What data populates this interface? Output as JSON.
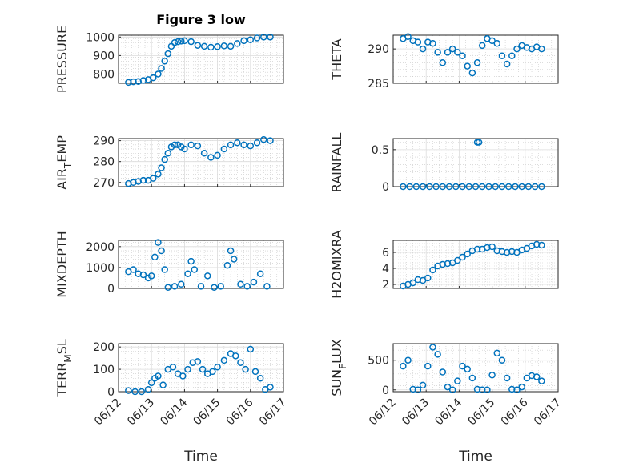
{
  "chart_data": [
    {
      "type": "scatter",
      "title": "Figure 3 low",
      "ylabel": "PRESSURE",
      "ylabel_sub": "",
      "ylim": [
        750,
        1010
      ],
      "yticks": [
        800,
        900,
        1000
      ],
      "ytick_labels": [
        "800",
        "900",
        "1000"
      ],
      "xlim": [
        0,
        5
      ],
      "marker_color": "#0072bd",
      "x": [
        0.3,
        0.45,
        0.6,
        0.75,
        0.9,
        1.05,
        1.2,
        1.3,
        1.4,
        1.5,
        1.6,
        1.7,
        1.8,
        1.9,
        2.0,
        2.2,
        2.4,
        2.6,
        2.8,
        3.0,
        3.2,
        3.4,
        3.6,
        3.8,
        4.0,
        4.2,
        4.4,
        4.6
      ],
      "y": [
        755,
        758,
        760,
        765,
        770,
        780,
        800,
        830,
        870,
        910,
        950,
        970,
        975,
        978,
        980,
        975,
        955,
        950,
        945,
        948,
        952,
        950,
        965,
        980,
        985,
        995,
        1000,
        1000
      ]
    },
    {
      "type": "scatter",
      "title": "",
      "ylabel": "THETA",
      "ylabel_sub": "",
      "ylim": [
        285,
        292
      ],
      "yticks": [
        285,
        290
      ],
      "ytick_labels": [
        "285",
        "290"
      ],
      "xlim": [
        0,
        5
      ],
      "marker_color": "#0072bd",
      "x": [
        0.3,
        0.45,
        0.6,
        0.75,
        0.9,
        1.05,
        1.2,
        1.35,
        1.5,
        1.65,
        1.8,
        1.95,
        2.1,
        2.25,
        2.4,
        2.55,
        2.7,
        2.85,
        3.0,
        3.15,
        3.3,
        3.45,
        3.6,
        3.75,
        3.9,
        4.05,
        4.2,
        4.35,
        4.5
      ],
      "y": [
        291.5,
        291.8,
        291.2,
        291.0,
        290.0,
        291.0,
        290.8,
        289.5,
        288.0,
        289.5,
        290.0,
        289.5,
        289.0,
        287.5,
        286.5,
        288.0,
        290.5,
        291.5,
        291.2,
        290.8,
        289.0,
        287.8,
        289.0,
        290.0,
        290.5,
        290.2,
        290.0,
        290.3,
        290.0
      ]
    },
    {
      "type": "scatter",
      "title": "",
      "ylabel": "AIR",
      "ylabel_sub": "T",
      "ylabel_after": "EMP",
      "ylim": [
        268,
        291
      ],
      "yticks": [
        270,
        280,
        290
      ],
      "ytick_labels": [
        "270",
        "280",
        "290"
      ],
      "xlim": [
        0,
        5
      ],
      "marker_color": "#0072bd",
      "x": [
        0.3,
        0.45,
        0.6,
        0.75,
        0.9,
        1.05,
        1.2,
        1.3,
        1.4,
        1.5,
        1.6,
        1.7,
        1.8,
        1.9,
        2.0,
        2.2,
        2.4,
        2.6,
        2.8,
        3.0,
        3.2,
        3.4,
        3.6,
        3.8,
        4.0,
        4.2,
        4.4,
        4.6
      ],
      "y": [
        269.5,
        270,
        270.5,
        271,
        271,
        272,
        274,
        277,
        281,
        284,
        287,
        288,
        288,
        287,
        286,
        288,
        287.5,
        284,
        282,
        283,
        286,
        288,
        289,
        288,
        287.5,
        289,
        290.5,
        290
      ]
    },
    {
      "type": "scatter",
      "title": "",
      "ylabel": "RAINFALL",
      "ylabel_sub": "",
      "ylim": [
        0,
        0.65
      ],
      "yticks": [
        0,
        0.5
      ],
      "ytick_labels": [
        "0",
        "0.5"
      ],
      "xlim": [
        0,
        5
      ],
      "marker_color": "#0072bd",
      "x": [
        0.3,
        0.5,
        0.7,
        0.9,
        1.1,
        1.3,
        1.5,
        1.7,
        1.9,
        2.1,
        2.3,
        2.5,
        2.55,
        2.6,
        2.7,
        2.9,
        3.1,
        3.3,
        3.5,
        3.7,
        3.9,
        4.1,
        4.3,
        4.5
      ],
      "y": [
        0,
        0,
        0,
        0,
        0,
        0,
        0,
        0,
        0,
        0,
        0,
        0,
        0.6,
        0.6,
        0,
        0,
        0,
        0,
        0,
        0,
        0,
        0,
        0,
        0
      ]
    },
    {
      "type": "scatter",
      "title": "",
      "ylabel": "MIXDEPTH",
      "ylabel_sub": "",
      "ylim": [
        0,
        2300
      ],
      "yticks": [
        0,
        1000,
        2000
      ],
      "ytick_labels": [
        "0",
        "1000",
        "2000"
      ],
      "xlim": [
        0,
        5
      ],
      "marker_color": "#0072bd",
      "x": [
        0.3,
        0.45,
        0.6,
        0.75,
        0.9,
        1.0,
        1.1,
        1.2,
        1.3,
        1.4,
        1.5,
        1.7,
        1.9,
        2.1,
        2.2,
        2.3,
        2.5,
        2.7,
        2.9,
        3.1,
        3.3,
        3.4,
        3.5,
        3.7,
        3.9,
        4.1,
        4.3,
        4.5
      ],
      "y": [
        800,
        900,
        700,
        650,
        500,
        600,
        1500,
        2200,
        1800,
        900,
        50,
        100,
        200,
        700,
        1300,
        900,
        100,
        600,
        50,
        100,
        1100,
        1800,
        1400,
        200,
        100,
        300,
        700,
        100
      ]
    },
    {
      "type": "scatter",
      "title": "",
      "ylabel": "H2OMIXRA",
      "ylabel_sub": "",
      "ylim": [
        1.5,
        7.5
      ],
      "yticks": [
        2,
        4,
        6
      ],
      "ytick_labels": [
        "2",
        "4",
        "6"
      ],
      "xlim": [
        0,
        5
      ],
      "marker_color": "#0072bd",
      "x": [
        0.3,
        0.45,
        0.6,
        0.75,
        0.9,
        1.05,
        1.2,
        1.35,
        1.5,
        1.65,
        1.8,
        1.95,
        2.1,
        2.25,
        2.4,
        2.55,
        2.7,
        2.85,
        3.0,
        3.15,
        3.3,
        3.45,
        3.6,
        3.75,
        3.9,
        4.05,
        4.2,
        4.35,
        4.5
      ],
      "y": [
        1.8,
        2.0,
        2.2,
        2.6,
        2.5,
        2.8,
        3.8,
        4.3,
        4.5,
        4.6,
        4.7,
        5.0,
        5.4,
        5.8,
        6.2,
        6.4,
        6.4,
        6.6,
        6.7,
        6.2,
        6.1,
        6.0,
        6.1,
        6.0,
        6.3,
        6.5,
        6.8,
        7.0,
        6.9
      ]
    },
    {
      "type": "scatter",
      "title": "",
      "ylabel": "TERR",
      "ylabel_sub": "M",
      "ylabel_after": "SL",
      "ylim": [
        0,
        215
      ],
      "yticks": [
        0,
        100,
        200
      ],
      "ytick_labels": [
        "0",
        "100",
        "200"
      ],
      "xlim": [
        0,
        5
      ],
      "marker_color": "#0072bd",
      "x": [
        0.3,
        0.5,
        0.7,
        0.9,
        1.0,
        1.1,
        1.2,
        1.35,
        1.5,
        1.65,
        1.8,
        1.95,
        2.1,
        2.25,
        2.4,
        2.55,
        2.7,
        2.85,
        3.0,
        3.2,
        3.4,
        3.55,
        3.7,
        3.85,
        4.0,
        4.15,
        4.3,
        4.45,
        4.6
      ],
      "y": [
        5,
        0,
        0,
        10,
        40,
        60,
        70,
        30,
        100,
        110,
        80,
        70,
        100,
        130,
        135,
        100,
        80,
        90,
        110,
        140,
        170,
        160,
        130,
        100,
        190,
        90,
        60,
        10,
        20
      ]
    },
    {
      "type": "scatter",
      "title": "",
      "ylabel": "SUN",
      "ylabel_sub": "F",
      "ylabel_after": "LUX",
      "ylim": [
        -30,
        780
      ],
      "yticks": [
        0,
        500
      ],
      "ytick_labels": [
        "0",
        "500"
      ],
      "xlim": [
        0,
        5
      ],
      "marker_color": "#0072bd",
      "x": [
        0.3,
        0.45,
        0.6,
        0.75,
        0.9,
        1.05,
        1.2,
        1.35,
        1.5,
        1.65,
        1.8,
        1.95,
        2.1,
        2.25,
        2.4,
        2.55,
        2.7,
        2.85,
        3.0,
        3.15,
        3.3,
        3.45,
        3.6,
        3.75,
        3.9,
        4.05,
        4.2,
        4.35,
        4.5
      ],
      "y": [
        400,
        500,
        10,
        0,
        80,
        400,
        720,
        600,
        300,
        50,
        0,
        150,
        400,
        350,
        200,
        10,
        0,
        0,
        250,
        620,
        500,
        200,
        10,
        0,
        50,
        200,
        240,
        220,
        150
      ]
    }
  ],
  "x_axis": {
    "tick_labels": [
      "06/12",
      "06/13",
      "06/14",
      "06/15",
      "06/16",
      "06/17"
    ],
    "xlabel": "Time"
  }
}
